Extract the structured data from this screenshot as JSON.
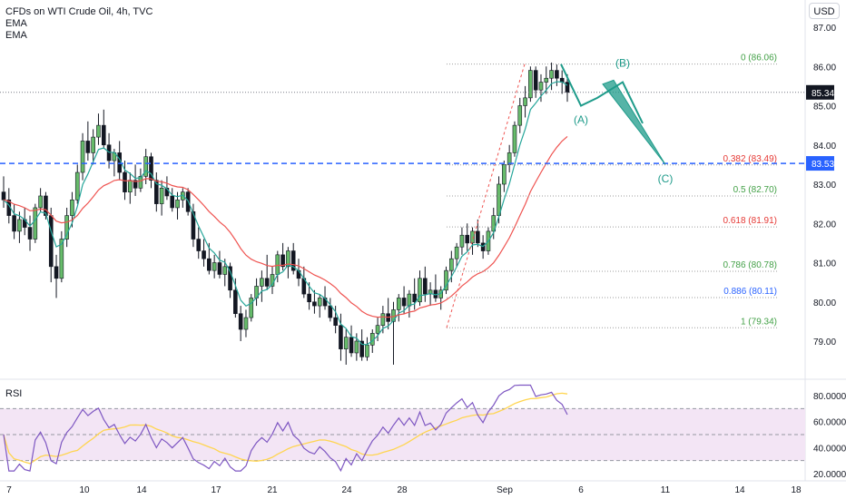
{
  "legend": {
    "title": "CFDs on WTI Crude Oil, 4h, TVC",
    "ema1": "EMA",
    "ema2": "EMA",
    "rsi": "RSI"
  },
  "currency": "USD",
  "colors": {
    "up": "#26a69a",
    "down": "#ef5350",
    "candle": "#131722",
    "ema_fast": "#26a69a",
    "ema_slow": "#ef5350",
    "rsi_line": "#7e57c2",
    "rsi_ma": "#ffd54f",
    "rsi_band": "#f3e5f5",
    "wave": "#1e9b8a",
    "blue_line": "#2962ff",
    "price_badge": "#131722"
  },
  "chart_data": {
    "type": "candlestick",
    "price_axis": {
      "ticks": [
        "87.00",
        "86.00",
        "85.00",
        "84.00",
        "83.00",
        "82.00",
        "81.00",
        "80.00",
        "79.00"
      ],
      "ylim": [
        78.0,
        87.0
      ]
    },
    "rsi_axis": {
      "ticks": [
        "80.0000",
        "60.0000",
        "40.0000",
        "20.0000"
      ],
      "ylim": [
        20,
        85
      ]
    },
    "time_axis": {
      "ticks": [
        "7",
        "10",
        "14",
        "17",
        "21",
        "24",
        "28",
        "Sep",
        "6",
        "11",
        "14",
        "18"
      ]
    },
    "current_price": "85.34",
    "horizontal_level": "83.53",
    "fibonacci": [
      {
        "label": "0 (86.06)",
        "value": 86.06,
        "color": "#43a047"
      },
      {
        "label": "0.382 (83.49)",
        "value": 83.49,
        "color": "#e53935"
      },
      {
        "label": "0.5 (82.70)",
        "value": 82.7,
        "color": "#43a047"
      },
      {
        "label": "0.618 (81.91)",
        "value": 81.91,
        "color": "#e53935"
      },
      {
        "label": "0.786 (80.78)",
        "value": 80.78,
        "color": "#43a047"
      },
      {
        "label": "0.886 (80.11)",
        "value": 80.11,
        "color": "#2962ff"
      },
      {
        "label": "1 (79.34)",
        "value": 79.34,
        "color": "#43a047"
      }
    ],
    "waves": [
      {
        "label": "(A)",
        "value": 85.0
      },
      {
        "label": "(B)",
        "value": 85.6
      },
      {
        "label": "(C)",
        "value": 83.5
      }
    ],
    "rsi_levels": [
      70,
      50,
      30
    ],
    "candles": [
      [
        82.8,
        83.2,
        82.4,
        82.6
      ],
      [
        82.6,
        82.9,
        82.0,
        82.2
      ],
      [
        82.2,
        82.5,
        81.6,
        81.8
      ],
      [
        81.8,
        82.3,
        81.5,
        82.1
      ],
      [
        82.1,
        82.4,
        81.7,
        81.9
      ],
      [
        81.9,
        82.2,
        81.3,
        81.6
      ],
      [
        81.6,
        82.5,
        81.5,
        82.4
      ],
      [
        82.4,
        82.9,
        82.3,
        82.7
      ],
      [
        82.7,
        82.8,
        82.1,
        82.2
      ],
      [
        82.2,
        82.4,
        80.5,
        80.9
      ],
      [
        80.9,
        81.2,
        80.1,
        80.6
      ],
      [
        80.6,
        81.8,
        80.5,
        81.6
      ],
      [
        81.6,
        82.4,
        81.4,
        82.2
      ],
      [
        82.2,
        82.8,
        81.9,
        82.6
      ],
      [
        82.6,
        83.5,
        82.5,
        83.3
      ],
      [
        83.3,
        84.3,
        83.1,
        84.1
      ],
      [
        84.1,
        84.6,
        83.6,
        83.8
      ],
      [
        83.8,
        84.4,
        83.5,
        84.2
      ],
      [
        84.2,
        84.8,
        84.0,
        84.5
      ],
      [
        84.5,
        84.9,
        83.9,
        84.0
      ],
      [
        84.0,
        84.3,
        83.4,
        83.6
      ],
      [
        83.6,
        83.9,
        83.2,
        83.8
      ],
      [
        83.8,
        84.1,
        83.1,
        83.3
      ],
      [
        83.3,
        83.6,
        82.6,
        82.8
      ],
      [
        82.8,
        83.3,
        82.5,
        83.1
      ],
      [
        83.1,
        83.5,
        82.7,
        82.9
      ],
      [
        82.9,
        83.4,
        82.8,
        83.2
      ],
      [
        83.2,
        83.9,
        83.0,
        83.7
      ],
      [
        83.7,
        83.8,
        82.9,
        83.1
      ],
      [
        83.1,
        83.3,
        82.3,
        82.5
      ],
      [
        82.5,
        83.1,
        82.2,
        82.9
      ],
      [
        82.9,
        83.2,
        82.6,
        82.7
      ],
      [
        82.7,
        82.9,
        82.3,
        82.4
      ],
      [
        82.4,
        82.8,
        82.1,
        82.6
      ],
      [
        82.6,
        82.9,
        82.4,
        82.8
      ],
      [
        82.8,
        82.9,
        82.2,
        82.3
      ],
      [
        82.3,
        82.5,
        81.4,
        81.6
      ],
      [
        81.6,
        81.9,
        81.1,
        81.3
      ],
      [
        81.3,
        81.6,
        80.9,
        81.1
      ],
      [
        81.1,
        81.5,
        80.7,
        80.8
      ],
      [
        80.8,
        81.2,
        80.6,
        81.0
      ],
      [
        81.0,
        81.3,
        80.6,
        80.7
      ],
      [
        80.7,
        81.1,
        80.4,
        80.9
      ],
      [
        80.9,
        81.0,
        80.1,
        80.3
      ],
      [
        80.3,
        80.6,
        79.6,
        79.7
      ],
      [
        79.7,
        79.9,
        79.0,
        79.3
      ],
      [
        79.3,
        79.8,
        79.1,
        79.6
      ],
      [
        79.6,
        80.2,
        79.5,
        80.1
      ],
      [
        80.1,
        80.6,
        79.9,
        80.4
      ],
      [
        80.4,
        80.8,
        80.0,
        80.6
      ],
      [
        80.6,
        81.2,
        80.3,
        80.4
      ],
      [
        80.4,
        80.9,
        80.2,
        80.7
      ],
      [
        80.7,
        81.3,
        80.5,
        81.2
      ],
      [
        81.2,
        81.5,
        80.8,
        80.9
      ],
      [
        80.9,
        81.4,
        80.6,
        81.3
      ],
      [
        81.3,
        81.5,
        80.7,
        80.8
      ],
      [
        80.8,
        81.1,
        80.4,
        80.6
      ],
      [
        80.6,
        80.9,
        80.1,
        80.2
      ],
      [
        80.2,
        80.5,
        79.8,
        80.0
      ],
      [
        80.0,
        80.3,
        79.7,
        79.9
      ],
      [
        79.9,
        80.2,
        79.6,
        80.1
      ],
      [
        80.1,
        80.4,
        79.8,
        79.9
      ],
      [
        79.9,
        80.1,
        79.5,
        79.6
      ],
      [
        79.6,
        79.9,
        79.2,
        79.4
      ],
      [
        79.4,
        79.7,
        78.5,
        78.8
      ],
      [
        78.8,
        79.3,
        78.4,
        79.1
      ],
      [
        79.1,
        79.4,
        78.6,
        78.7
      ],
      [
        78.7,
        79.2,
        78.5,
        79.0
      ],
      [
        79.0,
        79.3,
        78.5,
        78.6
      ],
      [
        78.6,
        79.1,
        78.5,
        78.9
      ],
      [
        78.9,
        79.3,
        78.7,
        79.2
      ],
      [
        79.2,
        79.6,
        79.0,
        79.4
      ],
      [
        79.4,
        79.9,
        79.2,
        79.7
      ],
      [
        79.7,
        80.1,
        79.3,
        79.5
      ],
      [
        79.5,
        80.0,
        78.4,
        79.8
      ],
      [
        79.8,
        80.2,
        79.5,
        80.1
      ],
      [
        80.1,
        80.4,
        79.7,
        79.9
      ],
      [
        79.9,
        80.3,
        79.6,
        80.2
      ],
      [
        80.2,
        80.6,
        79.8,
        80.0
      ],
      [
        80.0,
        80.8,
        79.9,
        80.6
      ],
      [
        80.6,
        80.9,
        80.0,
        80.2
      ],
      [
        80.2,
        80.5,
        79.9,
        80.3
      ],
      [
        80.3,
        80.7,
        80.0,
        80.1
      ],
      [
        80.1,
        80.4,
        79.8,
        80.3
      ],
      [
        80.3,
        80.9,
        80.2,
        80.8
      ],
      [
        80.8,
        81.3,
        80.5,
        81.1
      ],
      [
        81.1,
        81.5,
        80.9,
        81.4
      ],
      [
        81.4,
        81.9,
        81.2,
        81.7
      ],
      [
        81.7,
        82.0,
        81.3,
        81.5
      ],
      [
        81.5,
        81.9,
        81.2,
        81.8
      ],
      [
        81.8,
        82.1,
        81.4,
        81.5
      ],
      [
        81.5,
        81.7,
        81.1,
        81.3
      ],
      [
        81.3,
        81.9,
        81.2,
        81.8
      ],
      [
        81.8,
        82.4,
        81.6,
        82.2
      ],
      [
        82.2,
        83.2,
        82.0,
        83.0
      ],
      [
        83.0,
        83.6,
        82.8,
        83.5
      ],
      [
        83.5,
        84.0,
        83.3,
        83.8
      ],
      [
        83.8,
        84.6,
        83.7,
        84.5
      ],
      [
        84.5,
        85.2,
        84.3,
        85.0
      ],
      [
        85.0,
        85.5,
        84.7,
        85.2
      ],
      [
        85.2,
        86.0,
        85.1,
        85.9
      ],
      [
        85.9,
        86.0,
        85.2,
        85.4
      ],
      [
        85.4,
        85.8,
        85.1,
        85.6
      ],
      [
        85.6,
        86.0,
        85.3,
        85.7
      ],
      [
        85.7,
        86.1,
        85.4,
        85.9
      ],
      [
        85.9,
        86.05,
        85.5,
        85.7
      ],
      [
        85.7,
        85.9,
        85.3,
        85.6
      ],
      [
        85.6,
        85.8,
        85.1,
        85.34
      ]
    ]
  }
}
